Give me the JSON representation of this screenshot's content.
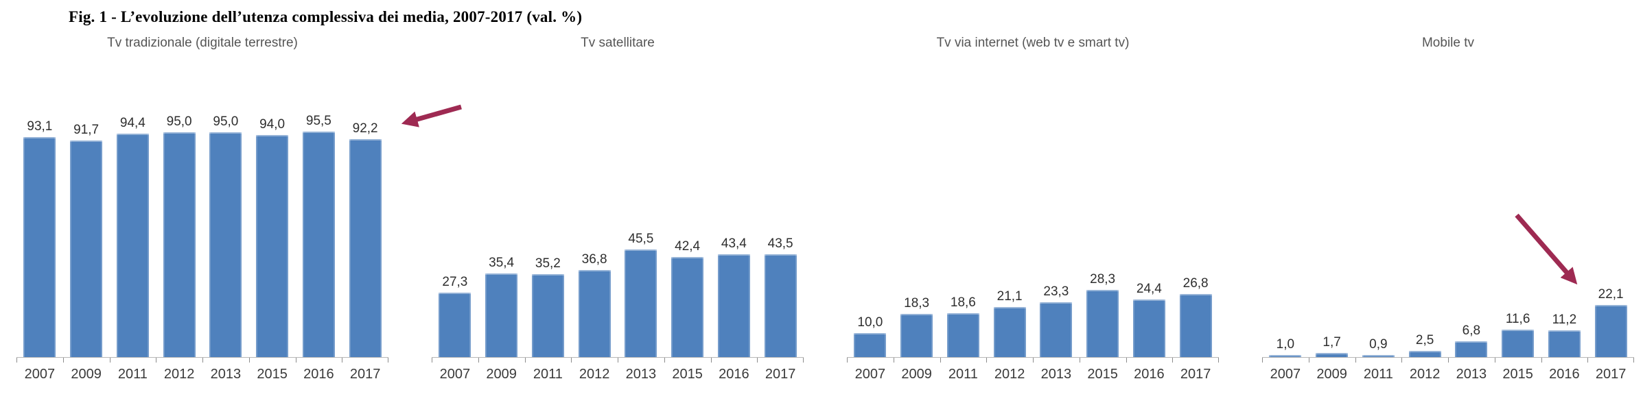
{
  "figure_title": "Fig. 1 - L’evoluzione dell’utenza complessiva dei media, 2007-2017 (val. %)",
  "colors": {
    "bar": "#4f81bd",
    "arrow": "#9e2a52",
    "axis_line": "#b7b7b7",
    "tick": "#8c8c8c",
    "value_label": "#2e2e2e",
    "year_label": "#3a3a3a",
    "chart_title": "#555555"
  },
  "chart_data": [
    {
      "type": "bar",
      "title": "Tv tradizionale (digitale terrestre)",
      "categories": [
        "2007",
        "2009",
        "2011",
        "2012",
        "2013",
        "2015",
        "2016",
        "2017"
      ],
      "values": [
        93.1,
        91.7,
        94.4,
        95.0,
        95.0,
        94.0,
        95.5,
        92.2
      ],
      "value_labels": [
        "93,1",
        "91,7",
        "94,4",
        "95,0",
        "95,0",
        "94,0",
        "95,5",
        "92,2"
      ],
      "xlabel": "",
      "ylabel": "",
      "ylim": [
        0,
        110
      ],
      "grid": false,
      "legend": "none",
      "data_labels": "above-bars",
      "annotations": [
        {
          "type": "arrow",
          "points_to": "2017 bar (92,2)",
          "direction": "down-left",
          "color": "#9e2a52"
        }
      ]
    },
    {
      "type": "bar",
      "title": "Tv satellitare",
      "categories": [
        "2007",
        "2009",
        "2011",
        "2012",
        "2013",
        "2015",
        "2016",
        "2017"
      ],
      "values": [
        27.3,
        35.4,
        35.2,
        36.8,
        45.5,
        42.4,
        43.4,
        43.5
      ],
      "value_labels": [
        "27,3",
        "35,4",
        "35,2",
        "36,8",
        "45,5",
        "42,4",
        "43,4",
        "43,5"
      ],
      "xlabel": "",
      "ylabel": "",
      "ylim": [
        0,
        110
      ],
      "grid": false,
      "legend": "none",
      "data_labels": "above-bars",
      "annotations": []
    },
    {
      "type": "bar",
      "title": "Tv via internet (web tv e smart tv)",
      "categories": [
        "2007",
        "2009",
        "2011",
        "2012",
        "2013",
        "2015",
        "2016",
        "2017"
      ],
      "values": [
        10.0,
        18.3,
        18.6,
        21.1,
        23.3,
        28.3,
        24.4,
        26.8
      ],
      "value_labels": [
        "10,0",
        "18,3",
        "18,6",
        "21,1",
        "23,3",
        "28,3",
        "24,4",
        "26,8"
      ],
      "xlabel": "",
      "ylabel": "",
      "ylim": [
        0,
        110
      ],
      "grid": false,
      "legend": "none",
      "data_labels": "above-bars",
      "annotations": []
    },
    {
      "type": "bar",
      "title": "Mobile tv",
      "categories": [
        "2007",
        "2009",
        "2011",
        "2012",
        "2013",
        "2015",
        "2016",
        "2017"
      ],
      "values": [
        1.0,
        1.7,
        0.9,
        2.5,
        6.8,
        11.6,
        11.2,
        22.1
      ],
      "value_labels": [
        "1,0",
        "1,7",
        "0,9",
        "2,5",
        "6,8",
        "11,6",
        "11,2",
        "22,1"
      ],
      "xlabel": "",
      "ylabel": "",
      "ylim": [
        0,
        110
      ],
      "grid": false,
      "legend": "none",
      "data_labels": "above-bars",
      "annotations": [
        {
          "type": "arrow",
          "points_to": "2017 bar (22,1)",
          "direction": "down-right",
          "color": "#9e2a52"
        }
      ]
    }
  ]
}
